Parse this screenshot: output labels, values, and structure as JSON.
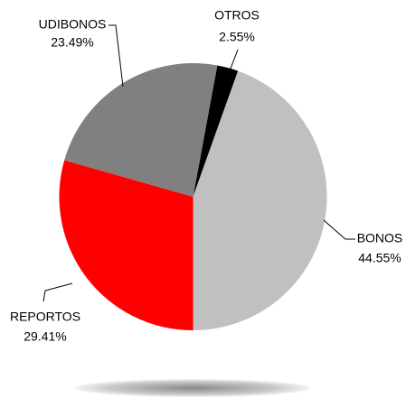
{
  "chart_data": {
    "type": "pie",
    "categories": [
      "OTROS",
      "BONOS",
      "REPORTOS",
      "UDIBONOS"
    ],
    "values": [
      2.55,
      44.55,
      29.41,
      23.49
    ],
    "value_labels": [
      "2.55%",
      "44.55%",
      "29.41%",
      "23.49%"
    ],
    "colors": [
      "#000000",
      "#c0c0c0",
      "#ff0000",
      "#808080"
    ]
  }
}
